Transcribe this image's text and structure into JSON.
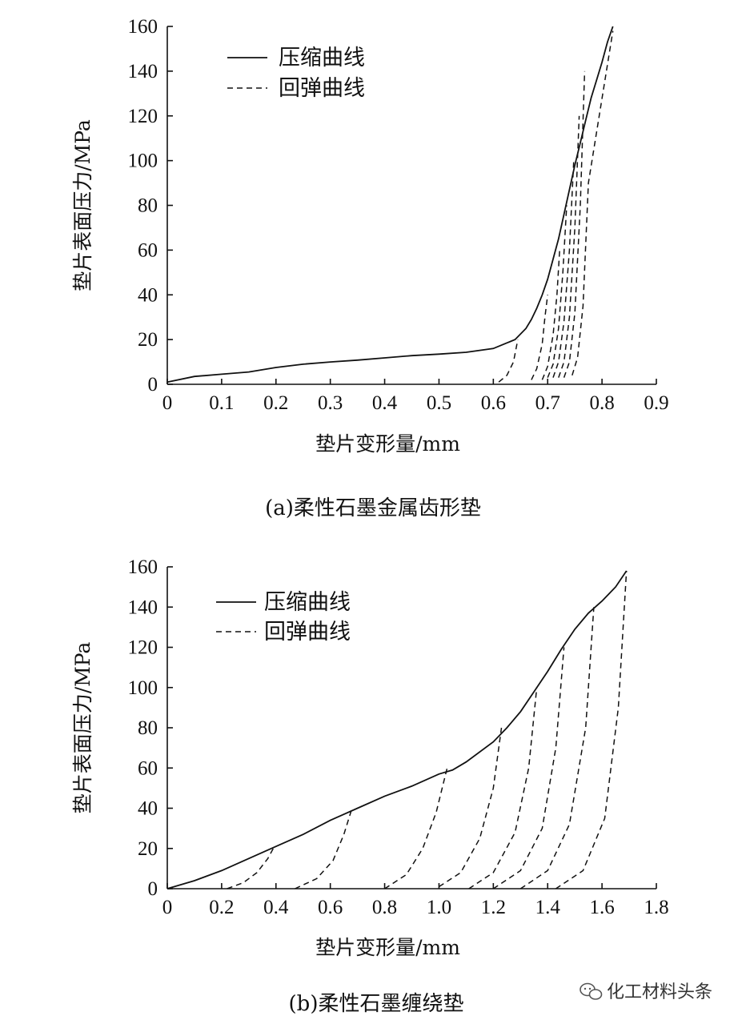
{
  "chart_data": [
    {
      "type": "line",
      "caption": "(a)柔性石墨金属齿形垫",
      "xlabel": "垫片变形量/mm",
      "ylabel": "垫片表面压力/MPa",
      "xlim": [
        0,
        0.9
      ],
      "ylim": [
        0,
        160
      ],
      "xticks": [
        0,
        0.1,
        0.2,
        0.3,
        0.4,
        0.5,
        0.6,
        0.7,
        0.8,
        0.9
      ],
      "xtick_labels": [
        "0",
        "0.1",
        "0.2",
        "0.3",
        "0.4",
        "0.5",
        "0.6",
        "0.7",
        "0.8",
        "0.9"
      ],
      "yticks": [
        0,
        20,
        40,
        60,
        80,
        100,
        120,
        140,
        160
      ],
      "ytick_labels": [
        "0",
        "20",
        "40",
        "60",
        "80",
        "100",
        "120",
        "140",
        "160"
      ],
      "legend": [
        {
          "name": "压缩曲线",
          "style": "solid"
        },
        {
          "name": "回弹曲线",
          "style": "dashed"
        }
      ],
      "series": [
        {
          "name": "压缩曲线",
          "style": "solid",
          "x": [
            0,
            0.05,
            0.1,
            0.15,
            0.2,
            0.25,
            0.3,
            0.35,
            0.4,
            0.45,
            0.5,
            0.55,
            0.6,
            0.62,
            0.64,
            0.66,
            0.67,
            0.68,
            0.69,
            0.7,
            0.71,
            0.72,
            0.73,
            0.74,
            0.75,
            0.76,
            0.77,
            0.78,
            0.79,
            0.8,
            0.81,
            0.82
          ],
          "y": [
            1,
            3.5,
            4.5,
            5.5,
            7.5,
            9,
            10,
            10.8,
            11.8,
            12.8,
            13.5,
            14.3,
            16,
            18,
            20,
            25,
            29,
            34,
            40,
            47,
            56,
            65,
            76,
            87,
            98,
            108,
            118,
            128,
            136,
            144,
            153,
            160
          ]
        },
        {
          "name": "回弹曲线",
          "style": "dashed",
          "paths": [
            {
              "x": [
                0.61,
                0.625,
                0.637,
                0.645
              ],
              "y": [
                1,
                4,
                10,
                20
              ]
            },
            {
              "x": [
                0.67,
                0.68,
                0.69,
                0.695,
                0.7
              ],
              "y": [
                2,
                7,
                18,
                30,
                40
              ]
            },
            {
              "x": [
                0.69,
                0.7,
                0.71,
                0.717,
                0.722
              ],
              "y": [
                2,
                8,
                22,
                40,
                60
              ]
            },
            {
              "x": [
                0.7,
                0.71,
                0.72,
                0.728,
                0.735
              ],
              "y": [
                3,
                9,
                25,
                50,
                80
              ]
            },
            {
              "x": [
                0.71,
                0.72,
                0.73,
                0.74,
                0.748
              ],
              "y": [
                3,
                10,
                28,
                60,
                100
              ]
            },
            {
              "x": [
                0.72,
                0.73,
                0.74,
                0.75,
                0.758
              ],
              "y": [
                3,
                10,
                30,
                70,
                120
              ]
            },
            {
              "x": [
                0.73,
                0.74,
                0.75,
                0.76,
                0.768
              ],
              "y": [
                3,
                10,
                32,
                80,
                140
              ]
            },
            {
              "x": [
                0.745,
                0.755,
                0.765,
                0.775,
                0.82
              ],
              "y": [
                4,
                12,
                35,
                90,
                158
              ]
            }
          ]
        }
      ]
    },
    {
      "type": "line",
      "caption": "(b)柔性石墨缠绕垫",
      "xlabel": "垫片变形量/mm",
      "ylabel": "垫片表面压力/MPa",
      "xlim": [
        0,
        1.8
      ],
      "ylim": [
        0,
        160
      ],
      "xticks": [
        0,
        0.2,
        0.4,
        0.6,
        0.8,
        1.0,
        1.2,
        1.4,
        1.6,
        1.8
      ],
      "xtick_labels": [
        "0",
        "0.2",
        "0.4",
        "0.6",
        "0.8",
        "1.0",
        "1.2",
        "1.4",
        "1.6",
        "1.8"
      ],
      "yticks": [
        0,
        20,
        40,
        60,
        80,
        100,
        120,
        140,
        160
      ],
      "ytick_labels": [
        "0",
        "20",
        "40",
        "60",
        "80",
        "100",
        "120",
        "140",
        "160"
      ],
      "legend": [
        {
          "name": "压缩曲线",
          "style": "solid"
        },
        {
          "name": "回弹曲线",
          "style": "dashed"
        }
      ],
      "series": [
        {
          "name": "压缩曲线",
          "style": "solid",
          "x": [
            0,
            0.1,
            0.2,
            0.3,
            0.4,
            0.5,
            0.6,
            0.7,
            0.8,
            0.9,
            1.0,
            1.05,
            1.1,
            1.2,
            1.25,
            1.3,
            1.35,
            1.4,
            1.45,
            1.5,
            1.55,
            1.6,
            1.65,
            1.69
          ],
          "y": [
            0,
            4,
            9,
            15,
            21,
            27,
            34,
            40,
            46,
            51,
            57,
            59,
            63,
            73,
            80,
            88,
            98,
            108,
            119,
            129,
            137,
            143,
            150,
            158
          ]
        },
        {
          "name": "回弹曲线",
          "style": "dashed",
          "paths": [
            {
              "x": [
                0.22,
                0.28,
                0.33,
                0.37,
                0.39
              ],
              "y": [
                0,
                3,
                8,
                15,
                20
              ]
            },
            {
              "x": [
                0.47,
                0.55,
                0.61,
                0.65,
                0.68
              ],
              "y": [
                0,
                5,
                14,
                27,
                40
              ]
            },
            {
              "x": [
                0.8,
                0.88,
                0.94,
                0.99,
                1.03
              ],
              "y": [
                0,
                7,
                20,
                38,
                60
              ]
            },
            {
              "x": [
                1.0,
                1.08,
                1.15,
                1.2,
                1.23
              ],
              "y": [
                1,
                8,
                25,
                50,
                80
              ]
            },
            {
              "x": [
                1.11,
                1.2,
                1.28,
                1.33,
                1.36
              ],
              "y": [
                0,
                8,
                28,
                60,
                100
              ]
            },
            {
              "x": [
                1.2,
                1.3,
                1.38,
                1.43,
                1.46
              ],
              "y": [
                0,
                9,
                30,
                70,
                120
              ]
            },
            {
              "x": [
                1.3,
                1.4,
                1.48,
                1.54,
                1.57
              ],
              "y": [
                0,
                9,
                32,
                80,
                140
              ]
            },
            {
              "x": [
                1.43,
                1.53,
                1.61,
                1.66,
                1.69
              ],
              "y": [
                0,
                9,
                35,
                90,
                158
              ]
            }
          ]
        }
      ]
    }
  ],
  "watermark": {
    "icon": "wechat-icon",
    "text": "化工材料头条"
  }
}
